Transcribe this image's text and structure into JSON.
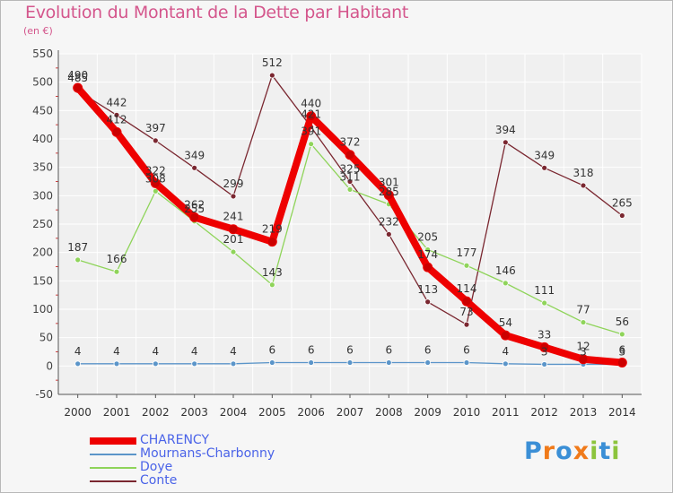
{
  "title": "Evolution du Montant de la Dette par Habitant",
  "unit_label": "(en €)",
  "logo": {
    "text": "Proxiti",
    "colors": [
      "#3b8fd6",
      "#f07a1a",
      "#3b8fd6",
      "#f07a1a",
      "#8cc43c",
      "#3b8fd6",
      "#8cc43c"
    ]
  },
  "chart_data": {
    "type": "line",
    "title": "Evolution du Montant de la Dette par Habitant",
    "ylabel": "(en €)",
    "xlabel": "",
    "ylim": [
      -50,
      550
    ],
    "yticks": [
      -50,
      0,
      50,
      100,
      150,
      200,
      250,
      300,
      350,
      400,
      450,
      500,
      550
    ],
    "categories": [
      "2000",
      "2001",
      "2002",
      "2003",
      "2004",
      "2005",
      "2006",
      "2007",
      "2008",
      "2009",
      "2010",
      "2011",
      "2012",
      "2013",
      "2014"
    ],
    "grid": true,
    "legend_position": "bottom-left",
    "series": [
      {
        "name": "Conte",
        "color": "#7a2730",
        "values": [
          485,
          442,
          397,
          349,
          299,
          512,
          421,
          325,
          232,
          113,
          73,
          394,
          349,
          318,
          265
        ]
      },
      {
        "name": "Doye",
        "color": "#8fd45a",
        "values": [
          187,
          166,
          308,
          255,
          201,
          143,
          391,
          311,
          285,
          205,
          177,
          146,
          111,
          77,
          56
        ]
      },
      {
        "name": "Mournans-Charbonny",
        "color": "#5b95c9",
        "values": [
          4,
          4,
          4,
          4,
          4,
          6,
          6,
          6,
          6,
          6,
          6,
          4,
          3,
          3,
          3
        ]
      },
      {
        "name": "CHARENCY",
        "color": "#ee0000",
        "values": [
          490,
          412,
          322,
          262,
          241,
          219,
          440,
          372,
          301,
          174,
          114,
          54,
          33,
          12,
          6
        ]
      }
    ],
    "legend_order": [
      "CHARENCY",
      "Mournans-Charbonny",
      "Doye",
      "Conte"
    ]
  }
}
